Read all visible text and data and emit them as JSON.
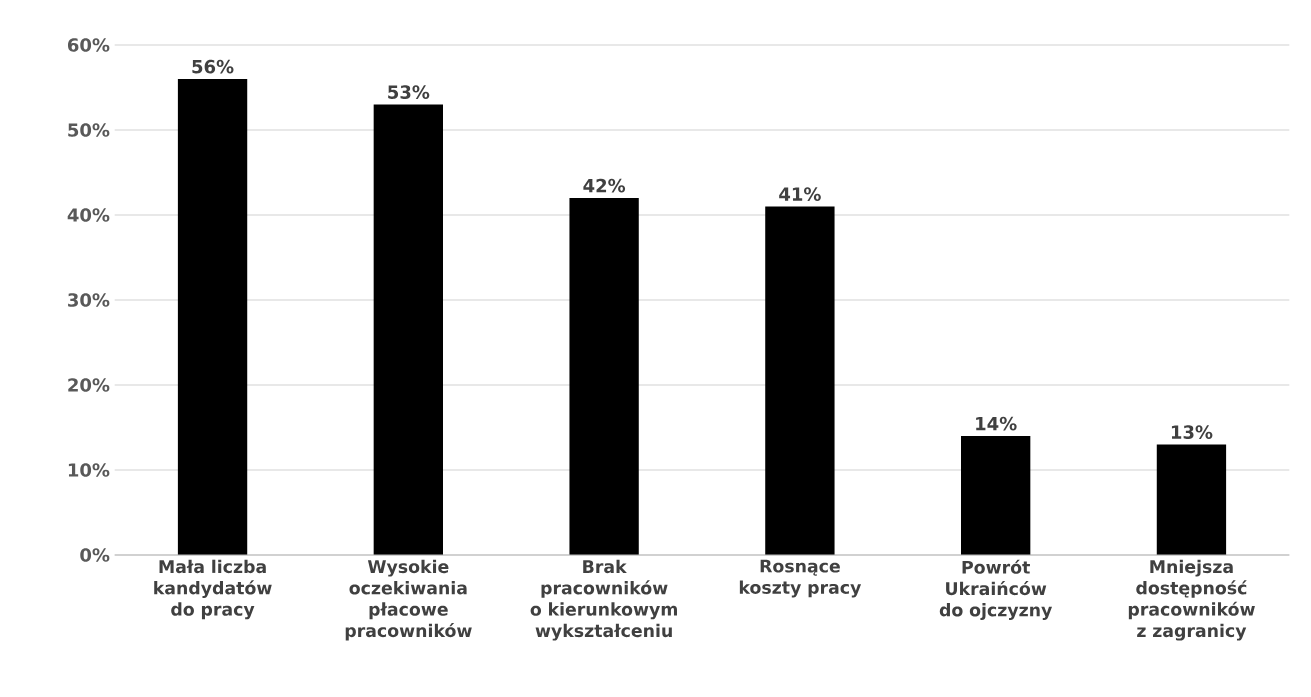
{
  "chart_data": {
    "type": "bar",
    "categories": [
      "Mała liczba kandydatów do pracy",
      "Wysokie oczekiwania płacowe pracowników",
      "Brak pracowników o kierunkowym wykształceniu",
      "Rosnące koszty pracy",
      "Powrót Ukraińców do ojczyzny",
      "Mniejsza dostępność pracowników z zagranicy"
    ],
    "values": [
      56,
      53,
      42,
      41,
      14,
      13
    ],
    "value_labels": [
      "56%",
      "53%",
      "42%",
      "41%",
      "14%",
      "13%"
    ],
    "color": "#000000",
    "ylim": [
      0,
      60
    ],
    "yticks": [
      {
        "value": 0,
        "label": "0%"
      },
      {
        "value": 10,
        "label": "10%"
      },
      {
        "value": 20,
        "label": "20%"
      },
      {
        "value": 30,
        "label": "30%"
      },
      {
        "value": 40,
        "label": "40%"
      },
      {
        "value": 50,
        "label": "50%"
      },
      {
        "value": 60,
        "label": "60%"
      }
    ],
    "grid": "y"
  }
}
